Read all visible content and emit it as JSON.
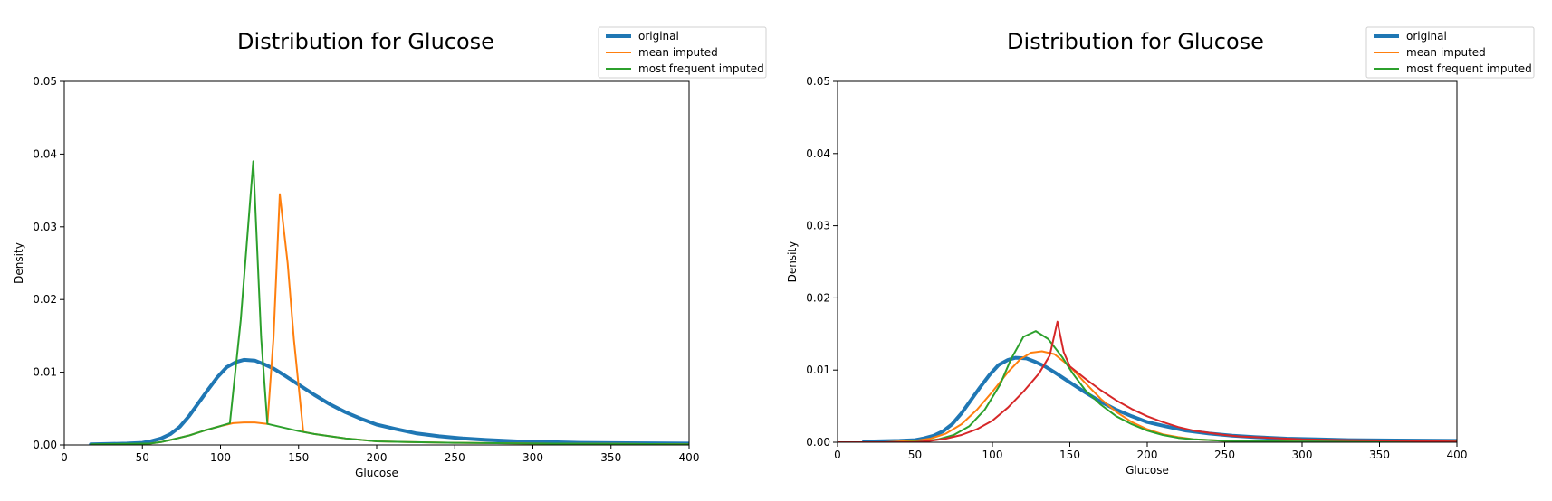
{
  "colors": {
    "original": "#1f77b4",
    "mean": "#ff7f0e",
    "most_frequent": "#2ca02c",
    "extra": "#d62728"
  },
  "chart_data": [
    {
      "type": "line",
      "title": "Distribution for Glucose",
      "xlabel": "Glucose",
      "ylabel": "Density",
      "xlim": [
        0,
        400
      ],
      "ylim": [
        0,
        0.05
      ],
      "xticks": [
        0,
        50,
        100,
        150,
        200,
        250,
        300,
        350,
        400
      ],
      "xtick_labels": [
        "0",
        "50",
        "100",
        "150",
        "200",
        "250",
        "300",
        "350",
        "400"
      ],
      "yticks": [
        0,
        0.01,
        0.02,
        0.03,
        0.04,
        0.05
      ],
      "ytick_labels": [
        "0.00",
        "0.01",
        "0.02",
        "0.03",
        "0.04",
        "0.05"
      ],
      "grid": false,
      "legend_position": "top-right",
      "series": [
        {
          "name": "original",
          "color": "#1f77b4",
          "width": 4,
          "points": [
            [
              17,
              0.0001
            ],
            [
              30,
              0.00015
            ],
            [
              40,
              0.0002
            ],
            [
              50,
              0.0003
            ],
            [
              55,
              0.0005
            ],
            [
              62,
              0.0009
            ],
            [
              68,
              0.0015
            ],
            [
              74,
              0.0025
            ],
            [
              80,
              0.004
            ],
            [
              86,
              0.0058
            ],
            [
              92,
              0.0076
            ],
            [
              98,
              0.0093
            ],
            [
              104,
              0.0107
            ],
            [
              110,
              0.0114
            ],
            [
              115,
              0.0117
            ],
            [
              122,
              0.0116
            ],
            [
              128,
              0.0111
            ],
            [
              134,
              0.0105
            ],
            [
              140,
              0.0097
            ],
            [
              150,
              0.0083
            ],
            [
              160,
              0.0069
            ],
            [
              170,
              0.0056
            ],
            [
              180,
              0.0045
            ],
            [
              190,
              0.0036
            ],
            [
              200,
              0.0028
            ],
            [
              212,
              0.0022
            ],
            [
              225,
              0.0016
            ],
            [
              240,
              0.0012
            ],
            [
              255,
              0.0009
            ],
            [
              270,
              0.0007
            ],
            [
              290,
              0.0005
            ],
            [
              310,
              0.0004
            ],
            [
              330,
              0.0003
            ],
            [
              360,
              0.00025
            ],
            [
              400,
              0.0002
            ]
          ]
        },
        {
          "name": "mean imputed",
          "color": "#ff7f0e",
          "width": 2,
          "points": [
            [
              45,
              0.0001
            ],
            [
              55,
              0.0002
            ],
            [
              62,
              0.0004
            ],
            [
              70,
              0.0008
            ],
            [
              80,
              0.0013
            ],
            [
              90,
              0.002
            ],
            [
              100,
              0.0026
            ],
            [
              108,
              0.003
            ],
            [
              115,
              0.0031
            ],
            [
              122,
              0.0031
            ],
            [
              130,
              0.0029
            ],
            [
              134,
              0.0148
            ],
            [
              138,
              0.0345
            ],
            [
              143,
              0.025
            ],
            [
              147,
              0.0145
            ],
            [
              153,
              0.0018
            ],
            [
              160,
              0.0015
            ],
            [
              170,
              0.0012
            ],
            [
              180,
              0.0009
            ],
            [
              190,
              0.0007
            ],
            [
              200,
              0.0005
            ],
            [
              220,
              0.0004
            ],
            [
              250,
              0.0003
            ],
            [
              300,
              0.0002
            ],
            [
              350,
              0.00015
            ],
            [
              400,
              0.0001
            ]
          ]
        },
        {
          "name": "most frequent imputed",
          "color": "#2ca02c",
          "width": 2,
          "points": [
            [
              17,
              0.0001
            ],
            [
              40,
              0.00015
            ],
            [
              55,
              0.0002
            ],
            [
              62,
              0.0004
            ],
            [
              70,
              0.0008
            ],
            [
              80,
              0.0013
            ],
            [
              90,
              0.002
            ],
            [
              100,
              0.0026
            ],
            [
              106,
              0.003
            ],
            [
              113,
              0.0172
            ],
            [
              121,
              0.039
            ],
            [
              126,
              0.0148
            ],
            [
              130,
              0.0029
            ],
            [
              140,
              0.0024
            ],
            [
              150,
              0.0019
            ],
            [
              160,
              0.0015
            ],
            [
              170,
              0.0012
            ],
            [
              180,
              0.0009
            ],
            [
              190,
              0.0007
            ],
            [
              200,
              0.0005
            ],
            [
              220,
              0.0004
            ],
            [
              250,
              0.0003
            ],
            [
              300,
              0.0002
            ],
            [
              350,
              0.00015
            ],
            [
              400,
              0.0001
            ]
          ]
        }
      ]
    },
    {
      "type": "line",
      "title": "Distribution for Glucose",
      "xlabel": "Glucose",
      "ylabel": "Density",
      "xlim": [
        0,
        400
      ],
      "ylim": [
        0,
        0.05
      ],
      "xticks": [
        0,
        50,
        100,
        150,
        200,
        250,
        300,
        350,
        400
      ],
      "xtick_labels": [
        "0",
        "50",
        "100",
        "150",
        "200",
        "250",
        "300",
        "350",
        "400"
      ],
      "yticks": [
        0,
        0.01,
        0.02,
        0.03,
        0.04,
        0.05
      ],
      "ytick_labels": [
        "0.00",
        "0.01",
        "0.02",
        "0.03",
        "0.04",
        "0.05"
      ],
      "grid": false,
      "legend_position": "top-right",
      "series": [
        {
          "name": "original",
          "color": "#1f77b4",
          "width": 4,
          "points": [
            [
              17,
              0.0001
            ],
            [
              30,
              0.00015
            ],
            [
              40,
              0.0002
            ],
            [
              50,
              0.0003
            ],
            [
              55,
              0.0005
            ],
            [
              62,
              0.0009
            ],
            [
              68,
              0.0015
            ],
            [
              74,
              0.0025
            ],
            [
              80,
              0.004
            ],
            [
              86,
              0.0058
            ],
            [
              92,
              0.0076
            ],
            [
              98,
              0.0093
            ],
            [
              104,
              0.0107
            ],
            [
              110,
              0.0114
            ],
            [
              115,
              0.0117
            ],
            [
              122,
              0.0116
            ],
            [
              128,
              0.0111
            ],
            [
              134,
              0.0105
            ],
            [
              140,
              0.0097
            ],
            [
              150,
              0.0083
            ],
            [
              160,
              0.0069
            ],
            [
              170,
              0.0056
            ],
            [
              180,
              0.0045
            ],
            [
              190,
              0.0036
            ],
            [
              200,
              0.0028
            ],
            [
              212,
              0.0022
            ],
            [
              225,
              0.0016
            ],
            [
              240,
              0.0012
            ],
            [
              255,
              0.0009
            ],
            [
              270,
              0.0007
            ],
            [
              290,
              0.0005
            ],
            [
              310,
              0.0004
            ],
            [
              330,
              0.0003
            ],
            [
              360,
              0.00025
            ],
            [
              400,
              0.0002
            ]
          ]
        },
        {
          "name": "mean imputed",
          "color": "#ff7f0e",
          "width": 2,
          "points": [
            [
              0,
              0
            ],
            [
              30,
              0
            ],
            [
              50,
              0.0002
            ],
            [
              60,
              0.0005
            ],
            [
              70,
              0.0012
            ],
            [
              80,
              0.0025
            ],
            [
              90,
              0.0045
            ],
            [
              100,
              0.007
            ],
            [
              110,
              0.0097
            ],
            [
              118,
              0.0115
            ],
            [
              125,
              0.0124
            ],
            [
              132,
              0.0126
            ],
            [
              140,
              0.0122
            ],
            [
              150,
              0.0105
            ],
            [
              160,
              0.0082
            ],
            [
              170,
              0.006
            ],
            [
              180,
              0.0042
            ],
            [
              190,
              0.0028
            ],
            [
              200,
              0.0018
            ],
            [
              210,
              0.0011
            ],
            [
              220,
              0.0007
            ],
            [
              230,
              0.0004
            ],
            [
              250,
              0.0002
            ],
            [
              300,
              0.0001
            ],
            [
              400,
              0.0001
            ]
          ]
        },
        {
          "name": "most frequent imputed",
          "color": "#2ca02c",
          "width": 2,
          "points": [
            [
              0,
              0
            ],
            [
              40,
              0
            ],
            [
              55,
              0.0001
            ],
            [
              65,
              0.0004
            ],
            [
              75,
              0.001
            ],
            [
              85,
              0.0022
            ],
            [
              95,
              0.0045
            ],
            [
              105,
              0.008
            ],
            [
              112,
              0.0115
            ],
            [
              120,
              0.0146
            ],
            [
              128,
              0.0154
            ],
            [
              136,
              0.0143
            ],
            [
              145,
              0.0118
            ],
            [
              152,
              0.0095
            ],
            [
              160,
              0.0072
            ],
            [
              170,
              0.0052
            ],
            [
              180,
              0.0036
            ],
            [
              190,
              0.0025
            ],
            [
              200,
              0.0016
            ],
            [
              210,
              0.001
            ],
            [
              220,
              0.0006
            ],
            [
              230,
              0.0004
            ],
            [
              250,
              0.0002
            ],
            [
              300,
              0.0001
            ],
            [
              400,
              0.0001
            ]
          ]
        },
        {
          "color": "#d62728",
          "width": 2,
          "points": [
            [
              0,
              0
            ],
            [
              50,
              0
            ],
            [
              60,
              0.0002
            ],
            [
              70,
              0.0005
            ],
            [
              80,
              0.001
            ],
            [
              90,
              0.0018
            ],
            [
              100,
              0.003
            ],
            [
              110,
              0.0048
            ],
            [
              120,
              0.007
            ],
            [
              130,
              0.0095
            ],
            [
              137,
              0.012
            ],
            [
              142,
              0.0167
            ],
            [
              146,
              0.0125
            ],
            [
              150,
              0.0105
            ],
            [
              160,
              0.0088
            ],
            [
              170,
              0.0072
            ],
            [
              180,
              0.0058
            ],
            [
              190,
              0.0046
            ],
            [
              200,
              0.0036
            ],
            [
              210,
              0.0028
            ],
            [
              220,
              0.0021
            ],
            [
              230,
              0.0016
            ],
            [
              240,
              0.0013
            ],
            [
              250,
              0.001
            ],
            [
              260,
              0.0008
            ],
            [
              280,
              0.0006
            ],
            [
              300,
              0.0004
            ],
            [
              330,
              0.0003
            ],
            [
              370,
              0.0002
            ],
            [
              400,
              0.0001
            ]
          ]
        }
      ]
    }
  ]
}
